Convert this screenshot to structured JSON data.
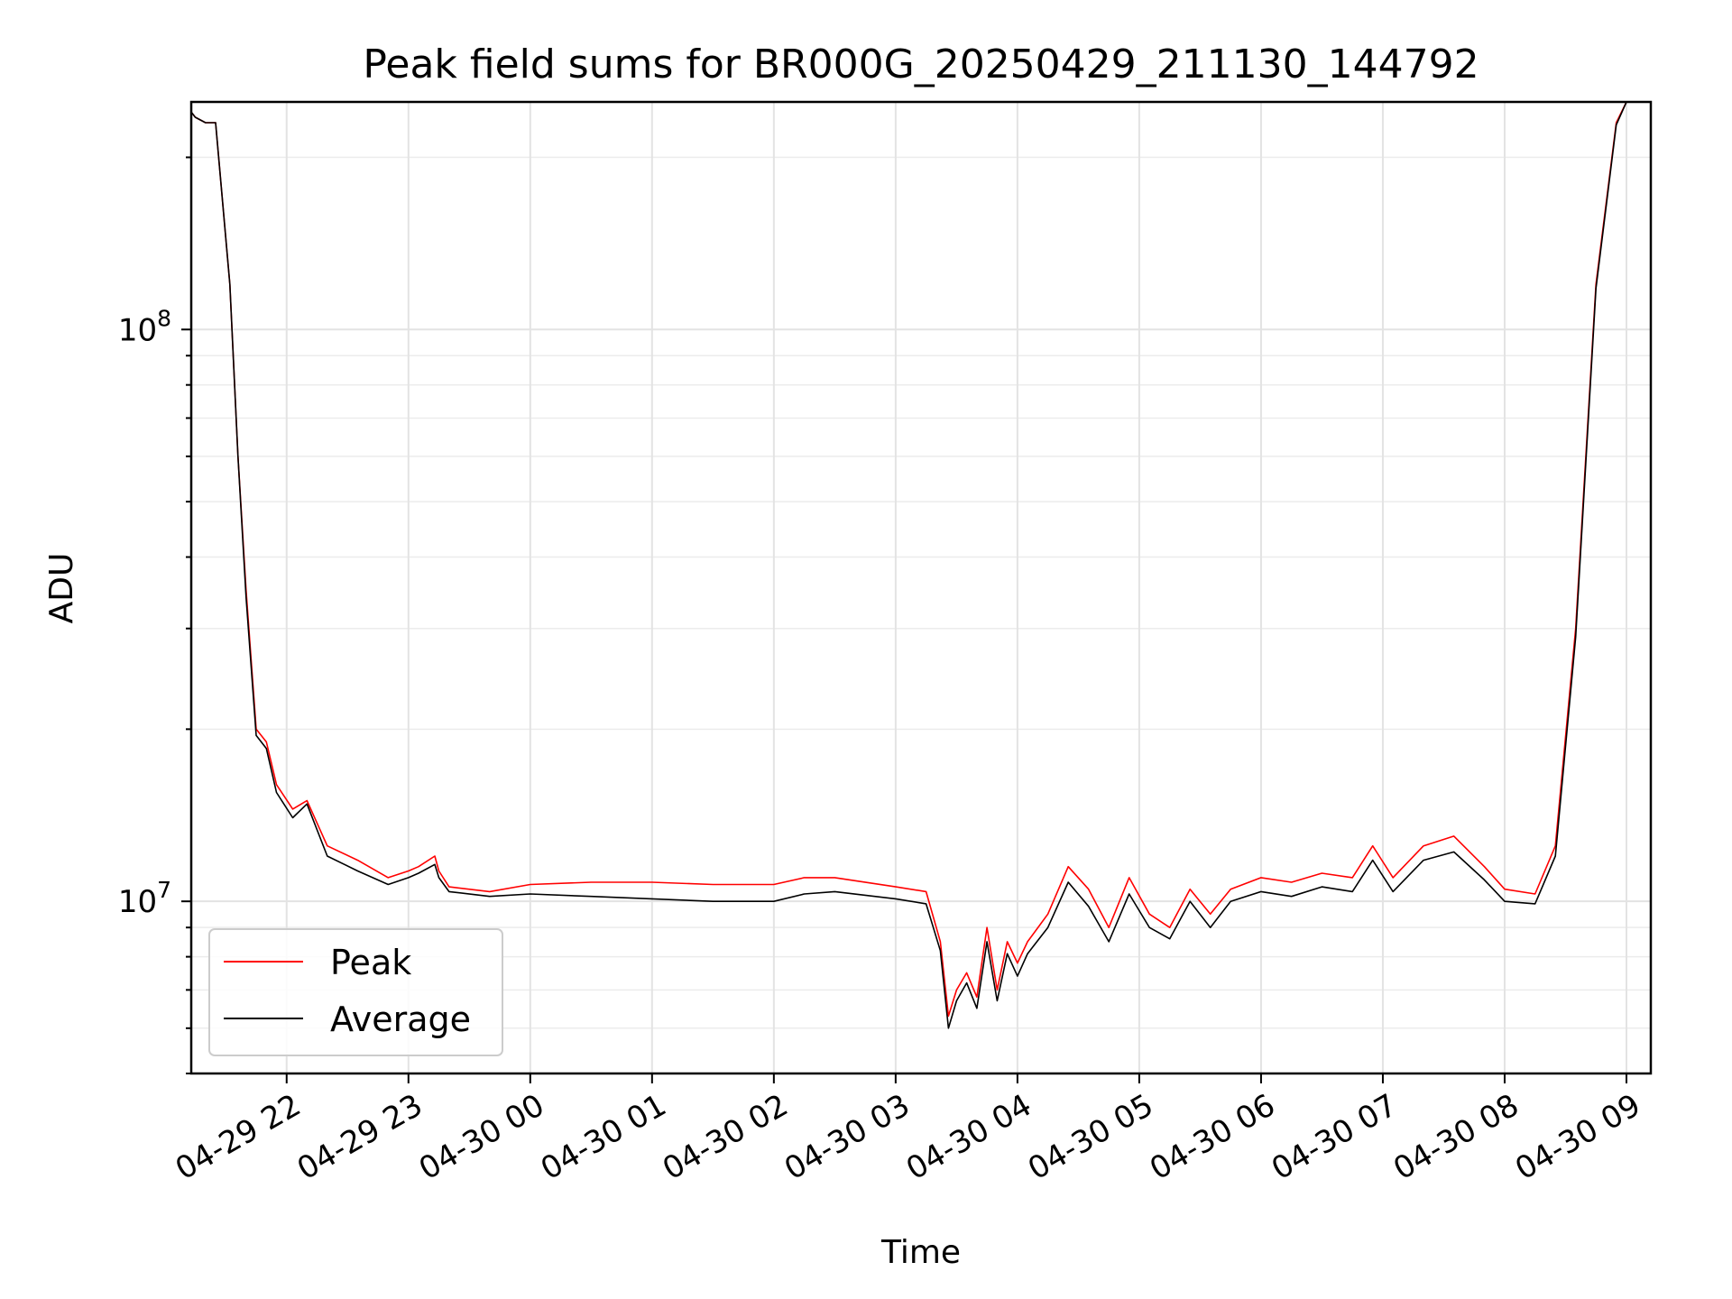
{
  "chart_data": {
    "type": "line",
    "title": "Peak field sums for BR000G_20250429_211130_144792",
    "xlabel": "Time",
    "ylabel": "ADU",
    "yscale": "log",
    "ylim": [
      5000000,
      250000000
    ],
    "xlim": [
      "2025-04-29 21:13",
      "2025-04-30 09:12"
    ],
    "grid": true,
    "legend_position": "lower-left",
    "x_ticks": [
      "04-29 22",
      "04-29 23",
      "04-30 00",
      "04-30 01",
      "04-30 02",
      "04-30 03",
      "04-30 04",
      "04-30 05",
      "04-30 06",
      "04-30 07",
      "04-30 08",
      "04-30 09"
    ],
    "x_tick_times": [
      "2025-04-29 22:00",
      "2025-04-29 23:00",
      "2025-04-30 00:00",
      "2025-04-30 01:00",
      "2025-04-30 02:00",
      "2025-04-30 03:00",
      "2025-04-30 04:00",
      "2025-04-30 05:00",
      "2025-04-30 06:00",
      "2025-04-30 07:00",
      "2025-04-30 08:00",
      "2025-04-30 09:00"
    ],
    "y_ticks": [
      {
        "base": "10",
        "exp": "7",
        "value": 10000000
      },
      {
        "base": "10",
        "exp": "8",
        "value": 100000000
      }
    ],
    "series": [
      {
        "name": "Peak",
        "color": "#ff0000",
        "x": [
          "2025-04-29 21:13",
          "2025-04-29 21:15",
          "2025-04-29 21:20",
          "2025-04-29 21:25",
          "2025-04-29 21:32",
          "2025-04-29 21:36",
          "2025-04-29 21:40",
          "2025-04-29 21:45",
          "2025-04-29 21:50",
          "2025-04-29 21:55",
          "2025-04-29 22:03",
          "2025-04-29 22:10",
          "2025-04-29 22:20",
          "2025-04-29 22:35",
          "2025-04-29 22:50",
          "2025-04-29 23:00",
          "2025-04-29 23:05",
          "2025-04-29 23:13",
          "2025-04-29 23:15",
          "2025-04-29 23:20",
          "2025-04-29 23:40",
          "2025-04-30 00:00",
          "2025-04-30 00:30",
          "2025-04-30 01:00",
          "2025-04-30 01:30",
          "2025-04-30 02:00",
          "2025-04-30 02:15",
          "2025-04-30 02:30",
          "2025-04-30 03:00",
          "2025-04-30 03:15",
          "2025-04-30 03:22",
          "2025-04-30 03:26",
          "2025-04-30 03:30",
          "2025-04-30 03:35",
          "2025-04-30 03:40",
          "2025-04-30 03:45",
          "2025-04-30 03:50",
          "2025-04-30 03:55",
          "2025-04-30 04:00",
          "2025-04-30 04:05",
          "2025-04-30 04:15",
          "2025-04-30 04:25",
          "2025-04-30 04:35",
          "2025-04-30 04:45",
          "2025-04-30 04:55",
          "2025-04-30 05:05",
          "2025-04-30 05:15",
          "2025-04-30 05:25",
          "2025-04-30 05:35",
          "2025-04-30 05:45",
          "2025-04-30 06:00",
          "2025-04-30 06:15",
          "2025-04-30 06:30",
          "2025-04-30 06:45",
          "2025-04-30 06:55",
          "2025-04-30 07:05",
          "2025-04-30 07:20",
          "2025-04-30 07:35",
          "2025-04-30 07:50",
          "2025-04-30 08:00",
          "2025-04-30 08:15",
          "2025-04-30 08:25",
          "2025-04-30 08:35",
          "2025-04-30 08:45",
          "2025-04-30 08:55",
          "2025-04-30 09:00",
          "2025-04-30 09:05"
        ],
        "y": [
          240000000,
          235000000,
          230000000,
          230000000,
          120000000,
          60000000,
          35000000,
          20000000,
          19000000,
          16000000,
          14500000,
          15000000,
          12500000,
          11800000,
          11000000,
          11300000,
          11500000,
          12000000,
          11300000,
          10600000,
          10400000,
          10700000,
          10800000,
          10800000,
          10700000,
          10700000,
          11000000,
          11000000,
          10600000,
          10400000,
          8500000,
          6300000,
          7000000,
          7500000,
          6800000,
          9000000,
          7000000,
          8500000,
          7800000,
          8500000,
          9500000,
          11500000,
          10500000,
          9000000,
          11000000,
          9500000,
          9000000,
          10500000,
          9500000,
          10500000,
          11000000,
          10800000,
          11200000,
          11000000,
          12500000,
          11000000,
          12500000,
          13000000,
          11500000,
          10500000,
          10300000,
          12500000,
          30000000,
          120000000,
          230000000,
          250000000,
          250000000
        ]
      },
      {
        "name": "Average",
        "color": "#000000",
        "x": [
          "2025-04-29 21:13",
          "2025-04-29 21:15",
          "2025-04-29 21:20",
          "2025-04-29 21:25",
          "2025-04-29 21:32",
          "2025-04-29 21:36",
          "2025-04-29 21:40",
          "2025-04-29 21:45",
          "2025-04-29 21:50",
          "2025-04-29 21:55",
          "2025-04-29 22:03",
          "2025-04-29 22:10",
          "2025-04-29 22:20",
          "2025-04-29 22:35",
          "2025-04-29 22:50",
          "2025-04-29 23:00",
          "2025-04-29 23:05",
          "2025-04-29 23:13",
          "2025-04-29 23:15",
          "2025-04-29 23:20",
          "2025-04-29 23:40",
          "2025-04-30 00:00",
          "2025-04-30 00:30",
          "2025-04-30 01:00",
          "2025-04-30 01:30",
          "2025-04-30 02:00",
          "2025-04-30 02:15",
          "2025-04-30 02:30",
          "2025-04-30 03:00",
          "2025-04-30 03:15",
          "2025-04-30 03:22",
          "2025-04-30 03:26",
          "2025-04-30 03:30",
          "2025-04-30 03:35",
          "2025-04-30 03:40",
          "2025-04-30 03:45",
          "2025-04-30 03:50",
          "2025-04-30 03:55",
          "2025-04-30 04:00",
          "2025-04-30 04:05",
          "2025-04-30 04:15",
          "2025-04-30 04:25",
          "2025-04-30 04:35",
          "2025-04-30 04:45",
          "2025-04-30 04:55",
          "2025-04-30 05:05",
          "2025-04-30 05:15",
          "2025-04-30 05:25",
          "2025-04-30 05:35",
          "2025-04-30 05:45",
          "2025-04-30 06:00",
          "2025-04-30 06:15",
          "2025-04-30 06:30",
          "2025-04-30 06:45",
          "2025-04-30 06:55",
          "2025-04-30 07:05",
          "2025-04-30 07:20",
          "2025-04-30 07:35",
          "2025-04-30 07:50",
          "2025-04-30 08:00",
          "2025-04-30 08:15",
          "2025-04-30 08:25",
          "2025-04-30 08:35",
          "2025-04-30 08:45",
          "2025-04-30 08:55",
          "2025-04-30 09:00",
          "2025-04-30 09:05"
        ],
        "y": [
          240000000,
          235000000,
          230000000,
          230000000,
          120000000,
          60000000,
          34000000,
          19500000,
          18500000,
          15500000,
          14000000,
          14800000,
          12000000,
          11300000,
          10700000,
          11000000,
          11200000,
          11600000,
          11000000,
          10400000,
          10200000,
          10300000,
          10200000,
          10100000,
          10000000,
          10000000,
          10300000,
          10400000,
          10100000,
          9900000,
          8200000,
          6000000,
          6700000,
          7200000,
          6500000,
          8500000,
          6700000,
          8100000,
          7400000,
          8100000,
          9000000,
          10800000,
          9800000,
          8500000,
          10300000,
          9000000,
          8600000,
          10000000,
          9000000,
          10000000,
          10400000,
          10200000,
          10600000,
          10400000,
          11800000,
          10400000,
          11800000,
          12200000,
          10900000,
          10000000,
          9900000,
          12000000,
          29000000,
          118000000,
          228000000,
          250000000,
          250000000
        ]
      }
    ]
  }
}
